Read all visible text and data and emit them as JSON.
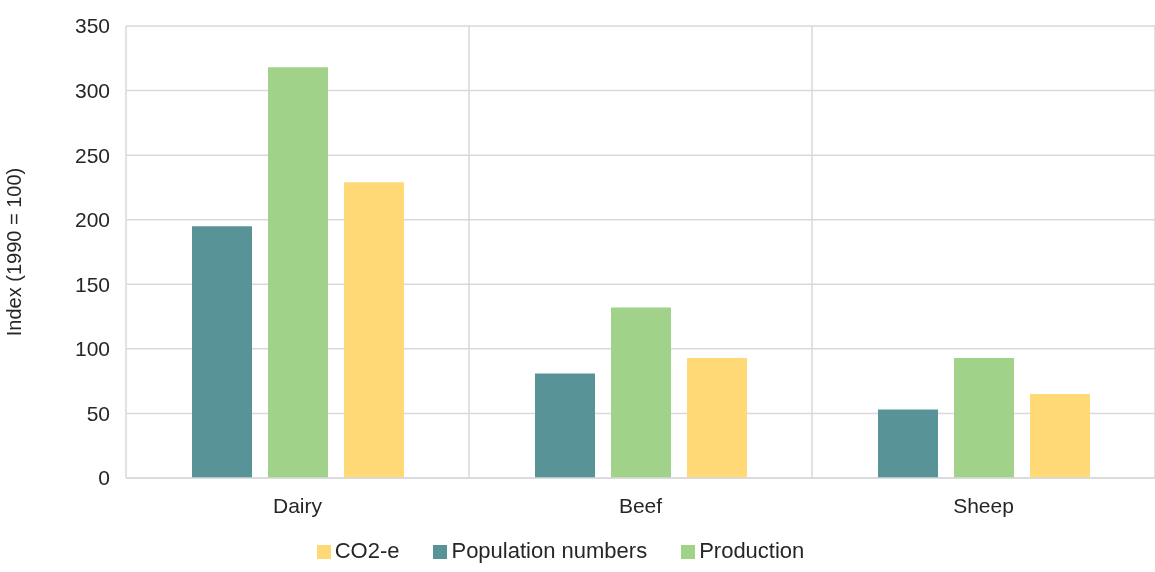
{
  "chart_data": {
    "type": "bar",
    "ylabel": "Index  (1990 = 100)",
    "categories": [
      "Dairy",
      "Beef",
      "Sheep"
    ],
    "series": [
      {
        "name": "Population numbers",
        "color": "#589497",
        "values": [
          195,
          81,
          53
        ]
      },
      {
        "name": "Production",
        "color": "#a0d28a",
        "values": [
          318,
          132,
          93
        ]
      },
      {
        "name": "CO2-e",
        "color": "#fed976",
        "values": [
          229,
          93,
          65
        ]
      }
    ],
    "ylim": [
      0,
      350
    ],
    "yticks": [
      0,
      50,
      100,
      150,
      200,
      250,
      300,
      350
    ],
    "grid": true,
    "legend": "bottom"
  }
}
